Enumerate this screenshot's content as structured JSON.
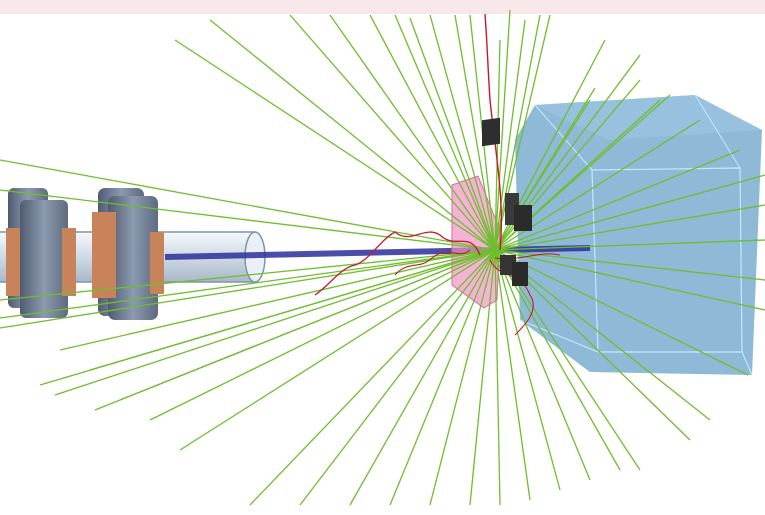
{
  "scene": {
    "kind": "particle-detector-simulation",
    "colors": {
      "top_band": "#f8e8ea",
      "background": "#ffffff",
      "trajectory_primary": "#6fbe2e",
      "trajectory_secondary": "#c8182f",
      "beam": "#2b2f9a",
      "detector_box": "#7aaed0",
      "detector_edge": "#aee0f5",
      "target_plate": "#f291c4",
      "magnet_steel": "#6b7890",
      "magnet_coil": "#c9835b",
      "pipe": "#c9d6e2"
    },
    "icons": [
      "magnet-icon",
      "beam-pipe-icon",
      "target-plate-icon",
      "detector-block-icon",
      "calorimeter-icon"
    ]
  }
}
